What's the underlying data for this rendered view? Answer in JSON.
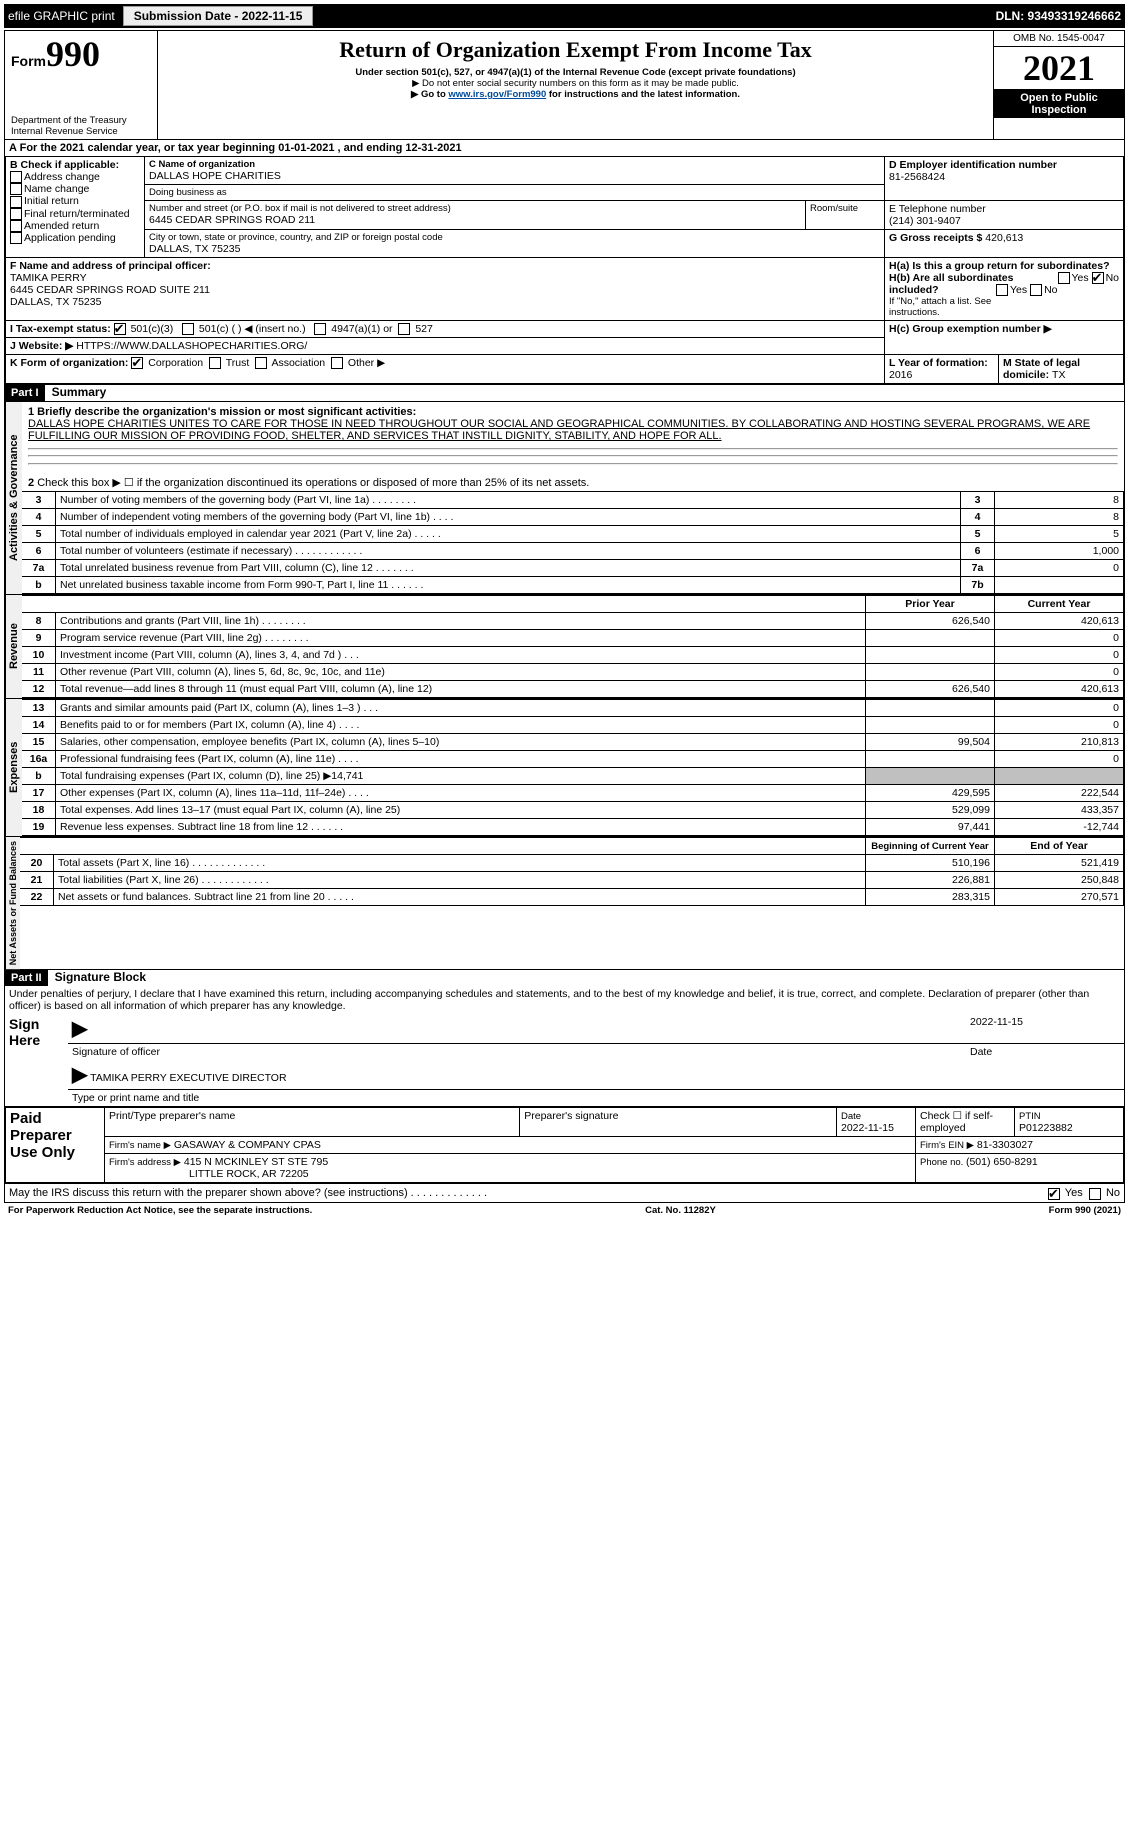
{
  "topbar": {
    "efile": "efile GRAPHIC print",
    "submission_label": "Submission Date - 2022-11-15",
    "dln_label": "DLN: 93493319246662"
  },
  "header": {
    "form_prefix": "Form",
    "form_number": "990",
    "dept1": "Department of the Treasury",
    "dept2": "Internal Revenue Service",
    "title": "Return of Organization Exempt From Income Tax",
    "subtitle": "Under section 501(c), 527, or 4947(a)(1) of the Internal Revenue Code (except private foundations)",
    "note1": "▶ Do not enter social security numbers on this form as it may be made public.",
    "note2_pre": "▶ Go to ",
    "note2_link": "www.irs.gov/Form990",
    "note2_post": " for instructions and the latest information.",
    "omb": "OMB No. 1545-0047",
    "year": "2021",
    "open": "Open to Public Inspection"
  },
  "periodA": {
    "text_pre": "For the 2021 calendar year, or tax year beginning ",
    "begin": "01-01-2021",
    "mid": " , and ending ",
    "end": "12-31-2021"
  },
  "boxB": {
    "label": "B Check if applicable:",
    "opts": {
      "addr": "Address change",
      "name": "Name change",
      "init": "Initial return",
      "final": "Final return/terminated",
      "amend": "Amended return",
      "app": "Application pending"
    }
  },
  "boxC": {
    "label": "C Name of organization",
    "name": "DALLAS HOPE CHARITIES",
    "dba_label": "Doing business as",
    "dba": "",
    "street_label": "Number and street (or P.O. box if mail is not delivered to street address)",
    "room_label": "Room/suite",
    "street": "6445 CEDAR SPRINGS ROAD 211",
    "city_label": "City or town, state or province, country, and ZIP or foreign postal code",
    "city": "DALLAS, TX  75235"
  },
  "boxD": {
    "label": "D Employer identification number",
    "ein": "81-2568424"
  },
  "boxE": {
    "label": "E Telephone number",
    "phone": "(214) 301-9407"
  },
  "boxG": {
    "label": "G Gross receipts $ ",
    "val": "420,613"
  },
  "boxF": {
    "label": "F Name and address of principal officer:",
    "name": "TAMIKA PERRY",
    "addr1": "6445 CEDAR SPRINGS ROAD SUITE 211",
    "addr2": "DALLAS, TX  75235"
  },
  "boxH": {
    "ha_label": "H(a) Is this a group return for subordinates?",
    "hb_label": "H(b) Are all subordinates included?",
    "hb_note": "If \"No,\" attach a list. See instructions.",
    "hc_label": "H(c) Group exemption number ▶",
    "yes": "Yes",
    "no": "No"
  },
  "boxI": {
    "label": "I Tax-exempt status:",
    "c3": "501(c)(3)",
    "cblank": "501(c) (   ) ◀ (insert no.)",
    "a1": "4947(a)(1) or",
    "s527": "527"
  },
  "boxJ": {
    "label": "J Website: ▶",
    "val": "HTTPS://WWW.DALLASHOPECHARITIES.ORG/"
  },
  "boxK": {
    "label": "K Form of organization:",
    "corp": "Corporation",
    "trust": "Trust",
    "assoc": "Association",
    "other": "Other ▶"
  },
  "boxL": {
    "label": "L Year of formation: ",
    "val": "2016"
  },
  "boxM": {
    "label": "M State of legal domicile: ",
    "val": "TX"
  },
  "part1": {
    "hdr": "Part I",
    "title": "Summary",
    "side_ag": "Activities & Governance",
    "side_rev": "Revenue",
    "side_exp": "Expenses",
    "side_net": "Net Assets or Fund Balances",
    "l1_label": "1 Briefly describe the organization's mission or most significant activities:",
    "l1_text": "DALLAS HOPE CHARITIES UNITES TO CARE FOR THOSE IN NEED THROUGHOUT OUR SOCIAL AND GEOGRAPHICAL COMMUNITIES. BY COLLABORATING AND HOSTING SEVERAL PROGRAMS, WE ARE FULFILLING OUR MISSION OF PROVIDING FOOD, SHELTER, AND SERVICES THAT INSTILL DIGNITY, STABILITY, AND HOPE FOR ALL.",
    "l2": "Check this box ▶ ☐ if the organization discontinued its operations or disposed of more than 25% of its net assets.",
    "rows_ag": [
      {
        "n": "3",
        "t": "Number of voting members of the governing body (Part VI, line 1a)  .  .  .  .  .  .  .  .",
        "c": "3",
        "v": "8"
      },
      {
        "n": "4",
        "t": "Number of independent voting members of the governing body (Part VI, line 1b)  .  .  .  .",
        "c": "4",
        "v": "8"
      },
      {
        "n": "5",
        "t": "Total number of individuals employed in calendar year 2021 (Part V, line 2a)  .  .  .  .  .",
        "c": "5",
        "v": "5"
      },
      {
        "n": "6",
        "t": "Total number of volunteers (estimate if necessary)  .  .  .  .  .  .  .  .  .  .  .  .",
        "c": "6",
        "v": "1,000"
      },
      {
        "n": "7a",
        "t": "Total unrelated business revenue from Part VIII, column (C), line 12  .  .  .  .  .  .  .",
        "c": "7a",
        "v": "0"
      },
      {
        "n": "b",
        "t": "Net unrelated business taxable income from Form 990-T, Part I, line 11  .  .  .  .  .  .",
        "c": "7b",
        "v": ""
      }
    ],
    "col_prior": "Prior Year",
    "col_curr": "Current Year",
    "rows_rev": [
      {
        "n": "8",
        "t": "Contributions and grants (Part VIII, line 1h)  .  .  .  .  .  .  .  .",
        "p": "626,540",
        "v": "420,613"
      },
      {
        "n": "9",
        "t": "Program service revenue (Part VIII, line 2g)  .  .  .  .  .  .  .  .",
        "p": "",
        "v": "0"
      },
      {
        "n": "10",
        "t": "Investment income (Part VIII, column (A), lines 3, 4, and 7d )  .  .  .",
        "p": "",
        "v": "0"
      },
      {
        "n": "11",
        "t": "Other revenue (Part VIII, column (A), lines 5, 6d, 8c, 9c, 10c, and 11e)",
        "p": "",
        "v": "0"
      },
      {
        "n": "12",
        "t": "Total revenue—add lines 8 through 11 (must equal Part VIII, column (A), line 12)",
        "p": "626,540",
        "v": "420,613"
      }
    ],
    "rows_exp": [
      {
        "n": "13",
        "t": "Grants and similar amounts paid (Part IX, column (A), lines 1–3 )  .  .  .",
        "p": "",
        "v": "0"
      },
      {
        "n": "14",
        "t": "Benefits paid to or for members (Part IX, column (A), line 4)  .  .  .  .",
        "p": "",
        "v": "0"
      },
      {
        "n": "15",
        "t": "Salaries, other compensation, employee benefits (Part IX, column (A), lines 5–10)",
        "p": "99,504",
        "v": "210,813"
      },
      {
        "n": "16a",
        "t": "Professional fundraising fees (Part IX, column (A), line 11e)  .  .  .  .",
        "p": "",
        "v": "0"
      },
      {
        "n": "b",
        "t": "Total fundraising expenses (Part IX, column (D), line 25) ▶14,741",
        "p": "GREY",
        "v": "GREY"
      },
      {
        "n": "17",
        "t": "Other expenses (Part IX, column (A), lines 11a–11d, 11f–24e)  .  .  .  .",
        "p": "429,595",
        "v": "222,544"
      },
      {
        "n": "18",
        "t": "Total expenses. Add lines 13–17 (must equal Part IX, column (A), line 25)",
        "p": "529,099",
        "v": "433,357"
      },
      {
        "n": "19",
        "t": "Revenue less expenses. Subtract line 18 from line 12  .  .  .  .  .  .",
        "p": "97,441",
        "v": "-12,744"
      }
    ],
    "col_begin": "Beginning of Current Year",
    "col_end": "End of Year",
    "rows_net": [
      {
        "n": "20",
        "t": "Total assets (Part X, line 16)  .  .  .  .  .  .  .  .  .  .  .  .  .",
        "p": "510,196",
        "v": "521,419"
      },
      {
        "n": "21",
        "t": "Total liabilities (Part X, line 26)  .  .  .  .  .  .  .  .  .  .  .  .",
        "p": "226,881",
        "v": "250,848"
      },
      {
        "n": "22",
        "t": "Net assets or fund balances. Subtract line 21 from line 20  .  .  .  .  .",
        "p": "283,315",
        "v": "270,571"
      }
    ]
  },
  "part2": {
    "hdr": "Part II",
    "title": "Signature Block",
    "decl": "Under penalties of perjury, I declare that I have examined this return, including accompanying schedules and statements, and to the best of my knowledge and belief, it is true, correct, and complete. Declaration of preparer (other than officer) is based on all information of which preparer has any knowledge.",
    "sign_here": "Sign Here",
    "sig_officer": "Signature of officer",
    "sig_date": "Date",
    "sig_date_val": "2022-11-15",
    "officer_name": "TAMIKA PERRY  EXECUTIVE DIRECTOR",
    "officer_type": "Type or print name and title",
    "paid": "Paid Preparer Use Only",
    "prep_name_label": "Print/Type preparer's name",
    "prep_sig_label": "Preparer's signature",
    "prep_date_label": "Date",
    "prep_date": "2022-11-15",
    "prep_check": "Check ☐ if self-employed",
    "ptin_label": "PTIN",
    "ptin": "P01223882",
    "firm_name_label": "Firm's name    ▶",
    "firm_name": "GASAWAY & COMPANY CPAS",
    "firm_ein_label": "Firm's EIN ▶",
    "firm_ein": "81-3303027",
    "firm_addr_label": "Firm's address ▶",
    "firm_addr1": "415 N MCKINLEY ST STE 795",
    "firm_addr2": "LITTLE ROCK, AR  72205",
    "firm_phone_label": "Phone no. ",
    "firm_phone": "(501) 650-8291",
    "discuss": "May the IRS discuss this return with the preparer shown above? (see instructions)  .  .  .  .  .  .  .  .  .  .  .  .  .",
    "yes": "Yes",
    "no": "No"
  },
  "footer": {
    "pra": "For Paperwork Reduction Act Notice, see the separate instructions.",
    "cat": "Cat. No. 11282Y",
    "form": "Form 990 (2021)"
  }
}
